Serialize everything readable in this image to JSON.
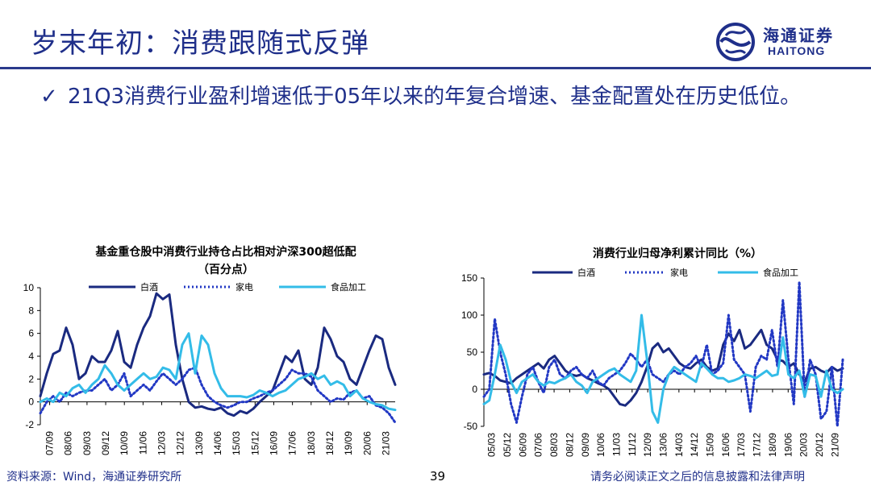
{
  "header": {
    "title": "岁末年初：消费跟随式反弹",
    "logo_cn": "海通证券",
    "logo_en": "HAITONG",
    "logo_color": "#1f2f8a"
  },
  "bullet": {
    "check": "✓",
    "text": "21Q3消费行业盈利增速低于05年以来的年复合增速、基金配置处在历史低位。"
  },
  "colors": {
    "baijiu": "#1a2a80",
    "jiadian": "#2238c4",
    "food": "#33bce8"
  },
  "chart_data": [
    {
      "type": "line",
      "title_line1": "基金重仓股中消费行业持仓占比相对沪深300超低配",
      "title_line2": "（百分点）",
      "legend": [
        "白酒",
        "家电",
        "食品加工"
      ],
      "ylim": [
        -2,
        10
      ],
      "yticks": [
        "10",
        "8",
        "6",
        "4",
        "2",
        "0",
        "-2"
      ],
      "xticks": [
        "07/09",
        "08/06",
        "09/03",
        "09/12",
        "10/09",
        "11/06",
        "12/03",
        "12/12",
        "13/09",
        "14/06",
        "15/03",
        "15/12",
        "16/09",
        "17/06",
        "18/03",
        "18/12",
        "19/09",
        "20/06",
        "21/03"
      ],
      "x": [
        0,
        3,
        6,
        9,
        12,
        15,
        18,
        21,
        24,
        27,
        30,
        33,
        36,
        39,
        42,
        45,
        48,
        51,
        54,
        57,
        60,
        63,
        66,
        69,
        72,
        75,
        78,
        81,
        84,
        87,
        90,
        93,
        96,
        99,
        102,
        105,
        108,
        111,
        114,
        117,
        120,
        123,
        126,
        129,
        132,
        135,
        138,
        141,
        144,
        147,
        150,
        153,
        156,
        159,
        162,
        165
      ],
      "series": [
        {
          "name": "白酒",
          "values": [
            0.5,
            2.5,
            4.2,
            4.5,
            6.5,
            5.0,
            2.0,
            2.5,
            4.0,
            3.5,
            3.5,
            4.5,
            6.2,
            3.5,
            3.0,
            5.0,
            6.5,
            7.5,
            9.5,
            9.0,
            9.4,
            5.0,
            2.0,
            0.0,
            -0.5,
            -0.4,
            -0.6,
            -0.7,
            -0.5,
            -1.0,
            -1.2,
            -0.8,
            -1.0,
            -0.6,
            0.0,
            0.5,
            1.0,
            2.5,
            4.0,
            3.5,
            4.5,
            2.0,
            1.5,
            3.0,
            6.5,
            5.5,
            4.0,
            3.5,
            2.0,
            1.5,
            3.0,
            4.5,
            5.8,
            5.5,
            3.0,
            1.5
          ]
        },
        {
          "name": "家电",
          "values": [
            -1.0,
            0.0,
            0.5,
            0.0,
            0.8,
            0.5,
            0.8,
            1.0,
            1.0,
            1.5,
            2.0,
            1.0,
            1.5,
            2.5,
            0.5,
            1.0,
            1.5,
            1.0,
            1.8,
            2.5,
            2.0,
            1.5,
            2.0,
            2.8,
            3.0,
            1.5,
            0.5,
            0.0,
            -0.3,
            -0.5,
            -0.3,
            0.0,
            0.0,
            0.3,
            0.5,
            0.8,
            1.0,
            1.5,
            2.0,
            2.8,
            2.5,
            2.5,
            2.2,
            1.0,
            0.5,
            0.0,
            0.3,
            0.2,
            0.8,
            1.0,
            0.3,
            0.5,
            -0.3,
            -0.5,
            -1.0,
            -1.8
          ]
        },
        {
          "name": "食品加工",
          "values": [
            0.0,
            0.3,
            0.0,
            0.8,
            0.5,
            1.2,
            1.5,
            0.8,
            1.5,
            2.0,
            3.2,
            2.5,
            1.5,
            1.0,
            1.5,
            2.0,
            2.5,
            2.0,
            2.2,
            3.0,
            2.8,
            2.0,
            5.0,
            6.0,
            2.5,
            5.8,
            5.0,
            2.5,
            1.2,
            0.5,
            0.5,
            0.5,
            0.4,
            0.6,
            1.0,
            0.8,
            0.5,
            0.8,
            1.0,
            1.5,
            2.0,
            2.2,
            2.5,
            2.0,
            2.3,
            1.5,
            1.8,
            1.5,
            0.5,
            1.0,
            0.3,
            0.0,
            -0.2,
            -0.3,
            -0.6,
            -0.7
          ]
        }
      ]
    },
    {
      "type": "line",
      "title_line1": "消费行业归母净利累计同比（%）",
      "legend": [
        "白酒",
        "家电",
        "食品加工"
      ],
      "ylim": [
        -50,
        150
      ],
      "yticks": [
        "150",
        "100",
        "50",
        "0",
        "-50"
      ],
      "xticks": [
        "05/03",
        "05/12",
        "06/09",
        "07/06",
        "08/03",
        "08/12",
        "09/09",
        "10/06",
        "11/03",
        "11/12",
        "12/09",
        "13/06",
        "14/03",
        "14/12",
        "15/09",
        "16/06",
        "17/03",
        "17/12",
        "18/09",
        "19/06",
        "20/03",
        "20/12",
        "21/09"
      ],
      "x": [
        0,
        3,
        6,
        9,
        12,
        15,
        18,
        21,
        24,
        27,
        30,
        33,
        36,
        39,
        42,
        45,
        48,
        51,
        54,
        57,
        60,
        63,
        66,
        69,
        72,
        75,
        78,
        81,
        84,
        87,
        90,
        93,
        96,
        99,
        102,
        105,
        108,
        111,
        114,
        117,
        120,
        123,
        126,
        129,
        132,
        135,
        138,
        141,
        144,
        147,
        150,
        153,
        156,
        159,
        162,
        165,
        168,
        171,
        174,
        177,
        180,
        183,
        186,
        189,
        192,
        195,
        198
      ],
      "series": [
        {
          "name": "白酒",
          "values": [
            20,
            22,
            18,
            12,
            10,
            8,
            15,
            20,
            25,
            30,
            35,
            28,
            40,
            45,
            35,
            25,
            20,
            18,
            20,
            15,
            12,
            8,
            5,
            0,
            -10,
            -20,
            -22,
            -15,
            -5,
            10,
            30,
            55,
            62,
            50,
            55,
            45,
            35,
            30,
            28,
            35,
            40,
            30,
            25,
            28,
            60,
            75,
            65,
            80,
            55,
            60,
            70,
            80,
            60,
            55,
            40,
            38,
            30,
            35,
            20,
            10,
            28,
            30,
            25,
            22,
            30,
            25,
            28
          ]
        },
        {
          "name": "家电",
          "values": [
            -10,
            0,
            95,
            50,
            20,
            -20,
            -45,
            -10,
            20,
            30,
            10,
            -5,
            30,
            40,
            20,
            15,
            25,
            30,
            20,
            15,
            25,
            10,
            5,
            15,
            20,
            25,
            35,
            48,
            40,
            30,
            40,
            20,
            15,
            10,
            20,
            25,
            20,
            30,
            35,
            45,
            30,
            60,
            20,
            25,
            35,
            100,
            40,
            30,
            20,
            -30,
            30,
            45,
            40,
            80,
            30,
            120,
            40,
            -20,
            145,
            -10,
            40,
            20,
            -40,
            -30,
            30,
            -50,
            40
          ]
        },
        {
          "name": "食品加工",
          "values": [
            -20,
            -15,
            20,
            60,
            40,
            10,
            -5,
            10,
            15,
            20,
            10,
            5,
            10,
            8,
            12,
            15,
            20,
            10,
            5,
            -5,
            10,
            15,
            20,
            25,
            28,
            20,
            15,
            10,
            25,
            100,
            40,
            -30,
            -45,
            0,
            20,
            30,
            25,
            20,
            15,
            10,
            35,
            28,
            20,
            15,
            15,
            10,
            12,
            15,
            20,
            18,
            15,
            20,
            25,
            18,
            20,
            70,
            20,
            15,
            25,
            -10,
            20,
            18,
            -10,
            25,
            0,
            -5,
            0
          ]
        }
      ]
    }
  ],
  "footer": {
    "source": "资料来源：Wind，海通证券研究所",
    "page": "39",
    "disclaimer": "请务必阅读正文之后的信息披露和法律声明"
  }
}
